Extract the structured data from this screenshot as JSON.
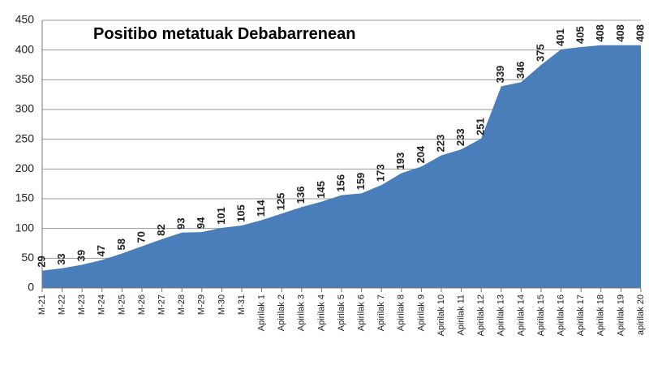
{
  "chart_data": {
    "type": "area",
    "title": "Positibo metatuak Debabarrenean",
    "categories": [
      "M-21",
      "M-22",
      "M-23",
      "M-24",
      "M-25",
      "M-26",
      "M-27",
      "M-28",
      "M-29",
      "M-30",
      "M-31",
      "Apirilak 1",
      "Apirilak 2",
      "Apirilak 3",
      "Apirilak 4",
      "Apirilak 5",
      "Apirilak 6",
      "Apirilak 7",
      "Apirilak 8",
      "Apirilak 9",
      "Apirilak 10",
      "Apirilak 11",
      "Apirilak 12",
      "Apirilak 13",
      "Apirilak 14",
      "Apirilak 15",
      "Apirilak 16",
      "Apirilak 17",
      "Apirilak 18",
      "Apirilak 19",
      "apirilak 20"
    ],
    "values": [
      29,
      33,
      39,
      47,
      58,
      70,
      82,
      93,
      94,
      101,
      105,
      114,
      125,
      136,
      145,
      156,
      159,
      173,
      193,
      204,
      223,
      233,
      251,
      339,
      346,
      375,
      401,
      405,
      408,
      408,
      408
    ],
    "color": "#4a7ebb",
    "ylim": [
      0,
      450
    ],
    "yticks": [
      0,
      50,
      100,
      150,
      200,
      250,
      300,
      350,
      400,
      450
    ],
    "grid": true
  }
}
